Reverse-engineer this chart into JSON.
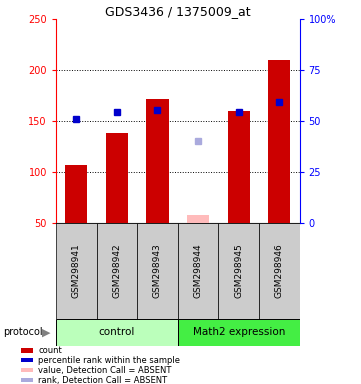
{
  "title": "GDS3436 / 1375009_at",
  "samples": [
    "GSM298941",
    "GSM298942",
    "GSM298943",
    "GSM298944",
    "GSM298945",
    "GSM298946"
  ],
  "red_values": [
    107,
    138,
    172,
    null,
    160,
    210
  ],
  "blue_values": [
    152,
    159,
    161,
    null,
    159,
    169
  ],
  "absent_red_values": [
    null,
    null,
    null,
    58,
    null,
    null
  ],
  "absent_blue_values": [
    null,
    null,
    null,
    130,
    null,
    null
  ],
  "ylim_left": [
    50,
    250
  ],
  "ylim_right": [
    0,
    100
  ],
  "yticks_left": [
    50,
    100,
    150,
    200,
    250
  ],
  "yticks_right": [
    0,
    25,
    50,
    75,
    100
  ],
  "ytick_labels_right": [
    "0",
    "25",
    "50",
    "75",
    "100%"
  ],
  "dotted_lines": [
    100,
    150,
    200
  ],
  "bar_bottom": 50,
  "bar_width": 0.55,
  "control_color": "#bbffbb",
  "math2_color": "#44ee44",
  "gray_box_color": "#cccccc",
  "red_bar_color": "#cc0000",
  "blue_marker_color": "#0000cc",
  "absent_red_color": "#ffbbbb",
  "absent_blue_color": "#aaaadd",
  "legend_labels": [
    "count",
    "percentile rank within the sample",
    "value, Detection Call = ABSENT",
    "rank, Detection Call = ABSENT"
  ],
  "legend_colors": [
    "#cc0000",
    "#0000cc",
    "#ffbbbb",
    "#aaaadd"
  ]
}
